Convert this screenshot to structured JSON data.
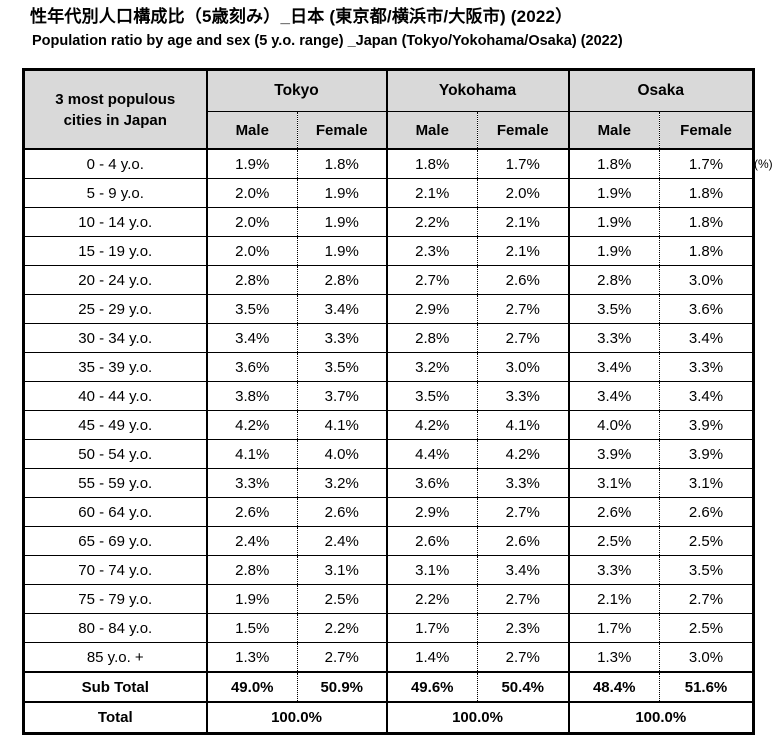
{
  "page": {
    "title_jp": "性年代別人口構成比（5歳刻み）_日本 (東京都/横浜市/大阪市) (2022）",
    "subtitle_en": "Population ratio by age and sex (5 y.o. range) _Japan (Tokyo/Yokohama/Osaka) (2022)",
    "unit_note": "(%)"
  },
  "colors": {
    "header_bg": "#d9d9d9",
    "border": "#000000",
    "text": "#000000",
    "background": "#ffffff"
  },
  "table": {
    "corner_header_line1": "3 most populous",
    "corner_header_line2": "cities in Japan",
    "city_headers": [
      "Tokyo",
      "Yokohama",
      "Osaka"
    ],
    "sex_headers": [
      "Male",
      "Female"
    ],
    "rows": [
      {
        "label": "0 - 4 y.o.",
        "values": [
          "1.9%",
          "1.8%",
          "1.8%",
          "1.7%",
          "1.8%",
          "1.7%"
        ]
      },
      {
        "label": "5 - 9 y.o.",
        "values": [
          "2.0%",
          "1.9%",
          "2.1%",
          "2.0%",
          "1.9%",
          "1.8%"
        ]
      },
      {
        "label": "10 - 14 y.o.",
        "values": [
          "2.0%",
          "1.9%",
          "2.2%",
          "2.1%",
          "1.9%",
          "1.8%"
        ]
      },
      {
        "label": "15 - 19 y.o.",
        "values": [
          "2.0%",
          "1.9%",
          "2.3%",
          "2.1%",
          "1.9%",
          "1.8%"
        ]
      },
      {
        "label": "20 - 24 y.o.",
        "values": [
          "2.8%",
          "2.8%",
          "2.7%",
          "2.6%",
          "2.8%",
          "3.0%"
        ]
      },
      {
        "label": "25 - 29 y.o.",
        "values": [
          "3.5%",
          "3.4%",
          "2.9%",
          "2.7%",
          "3.5%",
          "3.6%"
        ]
      },
      {
        "label": "30 - 34 y.o.",
        "values": [
          "3.4%",
          "3.3%",
          "2.8%",
          "2.7%",
          "3.3%",
          "3.4%"
        ]
      },
      {
        "label": "35 - 39 y.o.",
        "values": [
          "3.6%",
          "3.5%",
          "3.2%",
          "3.0%",
          "3.4%",
          "3.3%"
        ]
      },
      {
        "label": "40 - 44 y.o.",
        "values": [
          "3.8%",
          "3.7%",
          "3.5%",
          "3.3%",
          "3.4%",
          "3.4%"
        ]
      },
      {
        "label": "45 - 49 y.o.",
        "values": [
          "4.2%",
          "4.1%",
          "4.2%",
          "4.1%",
          "4.0%",
          "3.9%"
        ]
      },
      {
        "label": "50 - 54 y.o.",
        "values": [
          "4.1%",
          "4.0%",
          "4.4%",
          "4.2%",
          "3.9%",
          "3.9%"
        ]
      },
      {
        "label": "55 - 59 y.o.",
        "values": [
          "3.3%",
          "3.2%",
          "3.6%",
          "3.3%",
          "3.1%",
          "3.1%"
        ]
      },
      {
        "label": "60 - 64 y.o.",
        "values": [
          "2.6%",
          "2.6%",
          "2.9%",
          "2.7%",
          "2.6%",
          "2.6%"
        ]
      },
      {
        "label": "65 - 69 y.o.",
        "values": [
          "2.4%",
          "2.4%",
          "2.6%",
          "2.6%",
          "2.5%",
          "2.5%"
        ]
      },
      {
        "label": "70 - 74 y.o.",
        "values": [
          "2.8%",
          "3.1%",
          "3.1%",
          "3.4%",
          "3.3%",
          "3.5%"
        ]
      },
      {
        "label": "75 - 79 y.o.",
        "values": [
          "1.9%",
          "2.5%",
          "2.2%",
          "2.7%",
          "2.1%",
          "2.7%"
        ]
      },
      {
        "label": "80 - 84 y.o.",
        "values": [
          "1.5%",
          "2.2%",
          "1.7%",
          "2.3%",
          "1.7%",
          "2.5%"
        ]
      },
      {
        "label": "85 y.o. +",
        "values": [
          "1.3%",
          "2.7%",
          "1.4%",
          "2.7%",
          "1.3%",
          "3.0%"
        ]
      }
    ],
    "subtotal": {
      "label": "Sub Total",
      "values": [
        "49.0%",
        "50.9%",
        "49.6%",
        "50.4%",
        "48.4%",
        "51.6%"
      ]
    },
    "total": {
      "label": "Total",
      "values": [
        "100.0%",
        "100.0%",
        "100.0%"
      ]
    }
  },
  "chart_data": {
    "type": "table",
    "title": "性年代別人口構成比（5歳刻み）_日本 (東京都/横浜市/大阪市) (2022）",
    "subtitle": "Population ratio by age and sex (5 y.o. range) _Japan (Tokyo/Yokohama/Osaka) (2022)",
    "unit": "%",
    "categories": [
      "0 - 4 y.o.",
      "5 - 9 y.o.",
      "10 - 14 y.o.",
      "15 - 19 y.o.",
      "20 - 24 y.o.",
      "25 - 29 y.o.",
      "30 - 34 y.o.",
      "35 - 39 y.o.",
      "40 - 44 y.o.",
      "45 - 49 y.o.",
      "50 - 54 y.o.",
      "55 - 59 y.o.",
      "60 - 64 y.o.",
      "65 - 69 y.o.",
      "70 - 74 y.o.",
      "75 - 79 y.o.",
      "80 - 84 y.o.",
      "85 y.o. +"
    ],
    "series": [
      {
        "name": "Tokyo Male",
        "values": [
          1.9,
          2.0,
          2.0,
          2.0,
          2.8,
          3.5,
          3.4,
          3.6,
          3.8,
          4.2,
          4.1,
          3.3,
          2.6,
          2.4,
          2.8,
          1.9,
          1.5,
          1.3
        ],
        "sub_total": 49.0
      },
      {
        "name": "Tokyo Female",
        "values": [
          1.8,
          1.9,
          1.9,
          1.9,
          2.8,
          3.4,
          3.3,
          3.5,
          3.7,
          4.1,
          4.0,
          3.2,
          2.6,
          2.4,
          3.1,
          2.5,
          2.2,
          2.7
        ],
        "sub_total": 50.9
      },
      {
        "name": "Yokohama Male",
        "values": [
          1.8,
          2.1,
          2.2,
          2.3,
          2.7,
          2.9,
          2.8,
          3.2,
          3.5,
          4.2,
          4.4,
          3.6,
          2.9,
          2.6,
          3.1,
          2.2,
          1.7,
          1.4
        ],
        "sub_total": 49.6
      },
      {
        "name": "Yokohama Female",
        "values": [
          1.7,
          2.0,
          2.1,
          2.1,
          2.6,
          2.7,
          2.7,
          3.0,
          3.3,
          4.1,
          4.2,
          3.3,
          2.7,
          2.6,
          3.4,
          2.7,
          2.3,
          2.7
        ],
        "sub_total": 50.4
      },
      {
        "name": "Osaka Male",
        "values": [
          1.8,
          1.9,
          1.9,
          1.9,
          2.8,
          3.5,
          3.3,
          3.4,
          3.4,
          4.0,
          3.9,
          3.1,
          2.6,
          2.5,
          3.3,
          2.1,
          1.7,
          1.3
        ],
        "sub_total": 48.4
      },
      {
        "name": "Osaka Female",
        "values": [
          1.7,
          1.8,
          1.8,
          1.8,
          3.0,
          3.6,
          3.4,
          3.3,
          3.4,
          3.9,
          3.9,
          3.1,
          2.6,
          2.5,
          3.5,
          2.7,
          2.5,
          3.0
        ],
        "sub_total": 51.6
      }
    ],
    "totals": {
      "Tokyo": 100.0,
      "Yokohama": 100.0,
      "Osaka": 100.0
    },
    "grid": true,
    "legend_position": "none"
  }
}
